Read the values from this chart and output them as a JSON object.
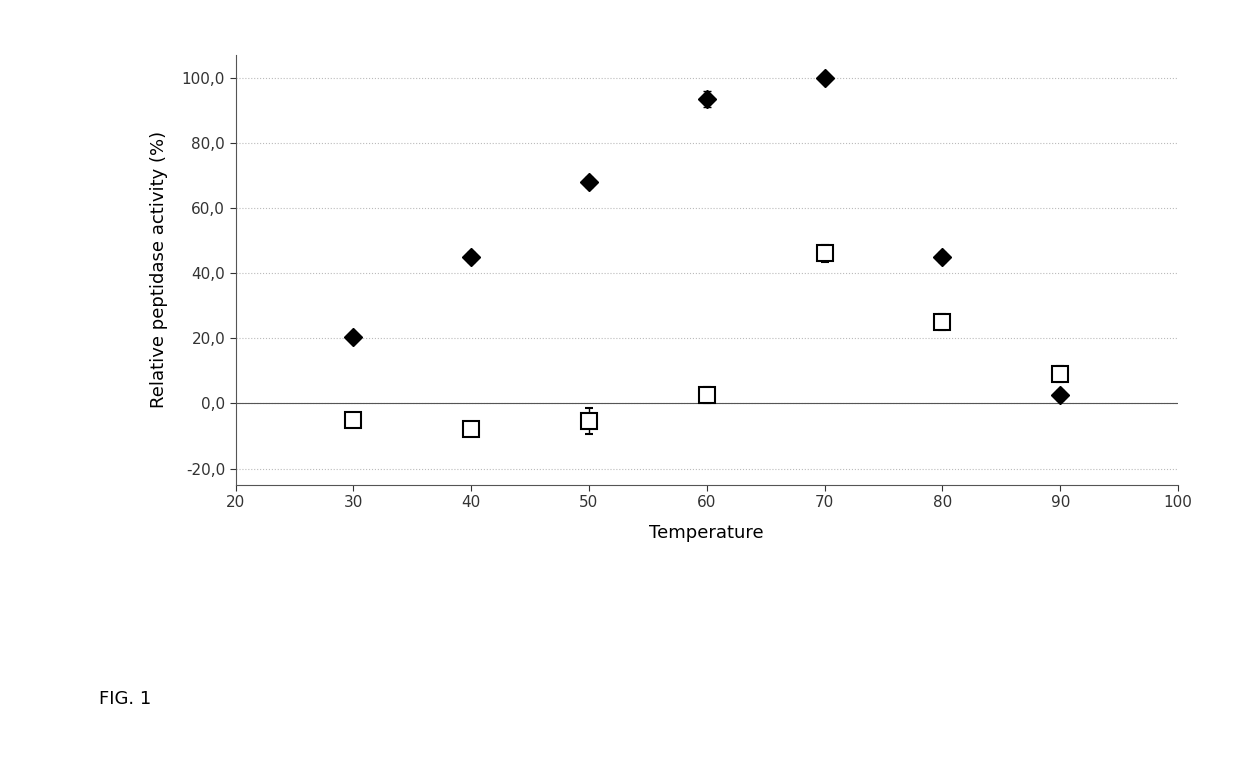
{
  "title": "",
  "xlabel": "Temperature",
  "ylabel": "Relative peptidase activity (%)",
  "fig_label": "FIG. 1",
  "xlim": [
    20,
    100
  ],
  "ylim": [
    -25,
    107
  ],
  "xticks": [
    20,
    30,
    40,
    50,
    60,
    70,
    80,
    90,
    100
  ],
  "yticks": [
    -20.0,
    0.0,
    20.0,
    40.0,
    60.0,
    80.0,
    100.0
  ],
  "ytick_labels": [
    "-20,0",
    "0,0",
    "20,0",
    "40,0",
    "60,0",
    "80,0",
    "100,0"
  ],
  "diamond_x": [
    30,
    40,
    50,
    60,
    70,
    80,
    90
  ],
  "diamond_y": [
    20.5,
    45.0,
    68.0,
    93.5,
    100.0,
    45.0,
    2.5
  ],
  "diamond_err": [
    0.5,
    1.5,
    1.5,
    2.5,
    0.8,
    1.5,
    1.5
  ],
  "square_x": [
    30,
    40,
    50,
    60,
    70,
    80,
    90
  ],
  "square_y": [
    -5.0,
    -8.0,
    -5.5,
    2.5,
    46.0,
    25.0,
    9.0
  ],
  "square_err": [
    2.0,
    1.5,
    4.0,
    2.5,
    2.5,
    2.5,
    2.5
  ],
  "diamond_color": "#000000",
  "square_color": "#000000",
  "grid_color": "#bbbbbb",
  "background_color": "#ffffff",
  "axis_color": "#555555"
}
